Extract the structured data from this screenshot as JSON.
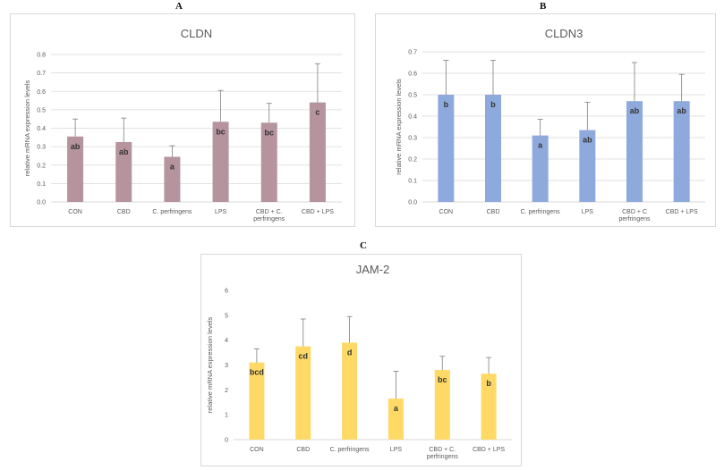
{
  "panels": [
    {
      "letter": "A"
    },
    {
      "letter": "B"
    },
    {
      "letter": "C"
    }
  ],
  "chart_data": [
    {
      "type": "bar",
      "title": "CLDN",
      "ylabel": "relative mRNA expression levels",
      "xlabel": "",
      "ylim": [
        0,
        0.8
      ],
      "yticks": [
        "0.0",
        "0.1",
        "0.2",
        "0.3",
        "0.4",
        "0.5",
        "0.6",
        "0.7",
        "0.8"
      ],
      "categories": [
        [
          "CON"
        ],
        [
          "CBD"
        ],
        [
          "C. perfringens"
        ],
        [
          "LPS"
        ],
        [
          "CBD + C.",
          "perfringens"
        ],
        [
          "CBD + LPS"
        ]
      ],
      "values": [
        0.355,
        0.325,
        0.245,
        0.435,
        0.43,
        0.54
      ],
      "errors": [
        0.095,
        0.13,
        0.06,
        0.17,
        0.105,
        0.21
      ],
      "letters": [
        "ab",
        "ab",
        "a",
        "bc",
        "bc",
        "c"
      ],
      "color": "#b5949e",
      "grid": true,
      "legend": "none"
    },
    {
      "type": "bar",
      "title": "CLDN3",
      "ylabel": "relative mRNA expression levels",
      "xlabel": "",
      "ylim": [
        0,
        0.7
      ],
      "yticks": [
        "0.0",
        "0.1",
        "0.2",
        "0.3",
        "0.4",
        "0.5",
        "0.6",
        "0.7"
      ],
      "categories": [
        [
          "CON"
        ],
        [
          "CBD"
        ],
        [
          "C. perfringens"
        ],
        [
          "LPS"
        ],
        [
          "CBD + C",
          "perfringens"
        ],
        [
          "CBD + LPS"
        ]
      ],
      "values": [
        0.5,
        0.5,
        0.31,
        0.335,
        0.47,
        0.47
      ],
      "errors": [
        0.16,
        0.16,
        0.075,
        0.13,
        0.18,
        0.125
      ],
      "letters": [
        "b",
        "b",
        "a",
        "ab",
        "ab",
        "ab"
      ],
      "color": "#8eaadc",
      "grid": true,
      "legend": "none"
    },
    {
      "type": "bar",
      "title": "JAM-2",
      "ylabel": "relative mRNA expression levels",
      "xlabel": "",
      "ylim": [
        0,
        6
      ],
      "yticks": [
        "0",
        "1",
        "2",
        "3",
        "4",
        "5",
        "6"
      ],
      "categories": [
        [
          "CON"
        ],
        [
          "CBD"
        ],
        [
          "C. perfringens"
        ],
        [
          "LPS"
        ],
        [
          "CBD + C.",
          "perfringens"
        ],
        [
          "CBD + LPS"
        ]
      ],
      "values": [
        3.1,
        3.75,
        3.9,
        1.65,
        2.8,
        2.65
      ],
      "errors": [
        0.55,
        1.1,
        1.05,
        1.1,
        0.55,
        0.65
      ],
      "letters": [
        "bcd",
        "cd",
        "d",
        "a",
        "bc",
        "b"
      ],
      "color": "#fed966",
      "grid": false,
      "legend": "none"
    }
  ]
}
